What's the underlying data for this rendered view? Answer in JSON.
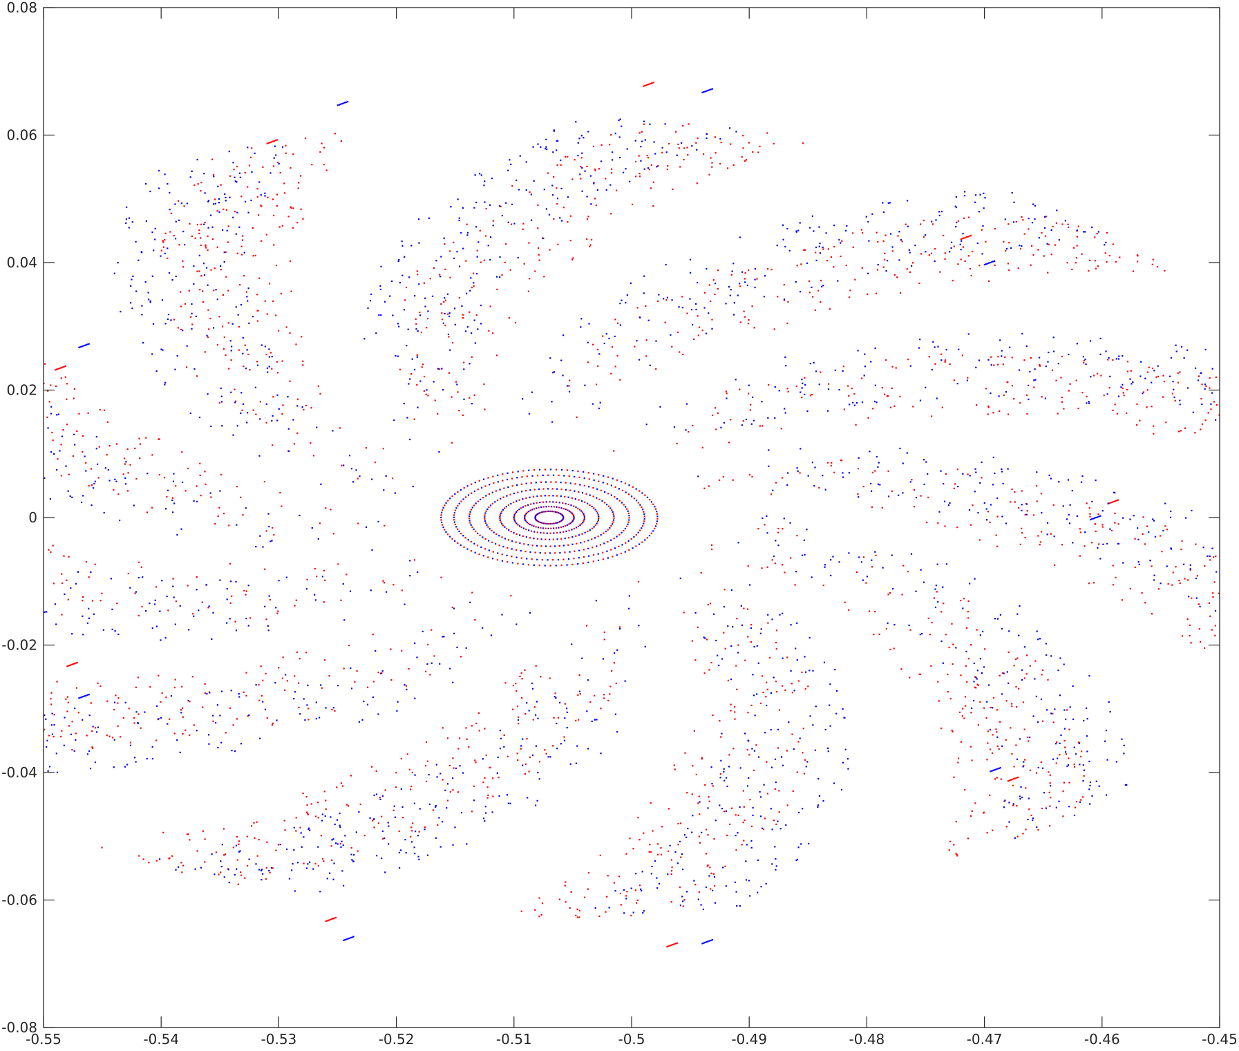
{
  "chart_data": {
    "type": "scatter",
    "title": "",
    "xlabel": "",
    "ylabel": "",
    "xlim": [
      -0.55,
      -0.45
    ],
    "ylim": [
      -0.08,
      0.08
    ],
    "x_ticks": [
      -0.55,
      -0.54,
      -0.53,
      -0.52,
      -0.51,
      -0.5,
      -0.49,
      -0.48,
      -0.47,
      -0.46,
      -0.45
    ],
    "x_tick_labels": [
      "-0.55",
      "-0.54",
      "-0.53",
      "-0.52",
      "-0.51",
      "-0.5",
      "-0.49",
      "-0.48",
      "-0.47",
      "-0.46",
      "-0.45"
    ],
    "y_ticks": [
      -0.08,
      -0.06,
      -0.04,
      -0.02,
      0,
      0.02,
      0.04,
      0.06,
      0.08
    ],
    "y_tick_labels": [
      "-0.08",
      "-0.06",
      "-0.04",
      "-0.02",
      "0",
      "0.02",
      "0.04",
      "0.06",
      "0.08"
    ],
    "grid": false,
    "box": true,
    "marker": "point",
    "center": [
      -0.507,
      0.0
    ],
    "series": [
      {
        "color": "#ff0000",
        "arms": 11,
        "max_radius": 0.0675,
        "arm_tips": [
          [
            -0.5485,
            0.0235
          ],
          [
            -0.5305,
            0.059
          ],
          [
            -0.4985,
            0.068
          ],
          [
            -0.4715,
            0.044
          ],
          [
            -0.459,
            0.0025
          ],
          [
            -0.4675,
            -0.041
          ],
          [
            -0.4965,
            -0.067
          ],
          [
            -0.5255,
            -0.063
          ],
          [
            -0.5475,
            -0.023
          ]
        ]
      },
      {
        "color": "#0000ff",
        "arms": 11,
        "max_radius": 0.0675,
        "arm_tips": [
          [
            -0.5465,
            0.027
          ],
          [
            -0.5245,
            0.065
          ],
          [
            -0.4935,
            0.067
          ],
          [
            -0.4695,
            0.04
          ],
          [
            -0.4605,
            0.0
          ],
          [
            -0.469,
            -0.0395
          ],
          [
            -0.4935,
            -0.0665
          ],
          [
            -0.524,
            -0.066
          ],
          [
            -0.5465,
            -0.028
          ]
        ]
      }
    ]
  }
}
